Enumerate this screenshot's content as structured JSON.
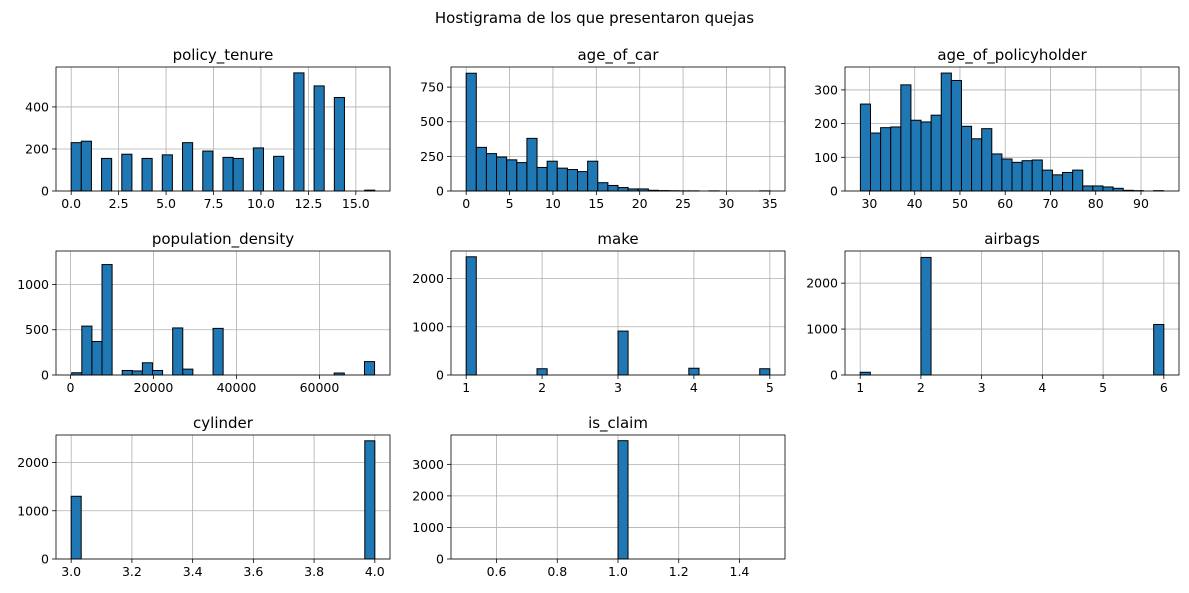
{
  "figure": {
    "suptitle": "Hostigrama de los que presentaron quejas",
    "bar_color": "#1f77b4",
    "edge_color": "#000000",
    "grid_color": "#b0b0b0"
  },
  "chart_data": [
    {
      "type": "bar",
      "title": "policy_tenure",
      "xlim": [
        -0.8,
        16.8
      ],
      "ylim": [
        0,
        590
      ],
      "xticks": [
        0,
        2.5,
        5,
        7.5,
        10,
        12.5,
        15
      ],
      "xtick_labels": [
        "0.0",
        "2.5",
        "5.0",
        "7.5",
        "10.0",
        "12.5",
        "15.0"
      ],
      "yticks": [
        0,
        200,
        400
      ],
      "ytick_labels": [
        "0",
        "200",
        "400"
      ],
      "bin_edges": [
        0,
        0.533,
        1.067,
        1.6,
        2.133,
        2.667,
        3.2,
        3.733,
        4.267,
        4.8,
        5.333,
        5.867,
        6.4,
        6.933,
        7.467,
        8,
        8.533,
        9.067,
        9.6,
        10.133,
        10.667,
        11.2,
        11.733,
        12.267,
        12.8,
        13.333,
        13.867,
        14.4,
        14.933,
        15.467,
        16
      ],
      "counts": [
        230,
        237,
        0,
        155,
        0,
        175,
        0,
        155,
        0,
        172,
        0,
        230,
        0,
        190,
        0,
        160,
        155,
        0,
        205,
        0,
        165,
        0,
        562,
        0,
        500,
        0,
        445,
        0,
        0,
        4
      ]
    },
    {
      "type": "bar",
      "title": "age_of_car",
      "xlim": [
        -1.75,
        36.75
      ],
      "ylim": [
        0,
        895
      ],
      "xticks": [
        0,
        5,
        10,
        15,
        20,
        25,
        30,
        35
      ],
      "xtick_labels": [
        "0",
        "5",
        "10",
        "15",
        "20",
        "25",
        "30",
        "35"
      ],
      "yticks": [
        0,
        250,
        500,
        750
      ],
      "ytick_labels": [
        "0",
        "250",
        "500",
        "750"
      ],
      "bin_edges": [
        0,
        1.167,
        2.333,
        3.5,
        4.667,
        5.833,
        7,
        8.167,
        9.333,
        10.5,
        11.667,
        12.833,
        14,
        15.167,
        16.333,
        17.5,
        18.667,
        19.833,
        21,
        22.167,
        23.333,
        24.5,
        25.667,
        26.833,
        28,
        29.167,
        30.333,
        31.5,
        32.667,
        33.833,
        35
      ],
      "counts": [
        850,
        315,
        270,
        245,
        225,
        205,
        380,
        170,
        215,
        165,
        155,
        140,
        215,
        60,
        40,
        25,
        15,
        15,
        5,
        3,
        2,
        1,
        1,
        0,
        1,
        0,
        0,
        0,
        0,
        1
      ]
    },
    {
      "type": "bar",
      "title": "age_of_policyholder",
      "xlim": [
        24.6,
        98.4
      ],
      "ylim": [
        0,
        368
      ],
      "xticks": [
        30,
        40,
        50,
        60,
        70,
        80,
        90
      ],
      "xtick_labels": [
        "30",
        "40",
        "50",
        "60",
        "70",
        "80",
        "90"
      ],
      "yticks": [
        0,
        100,
        200,
        300
      ],
      "ytick_labels": [
        "0",
        "100",
        "200",
        "300"
      ],
      "bin_edges": [
        28,
        30.233,
        32.467,
        34.7,
        36.933,
        39.167,
        41.4,
        43.633,
        45.867,
        48.1,
        50.333,
        52.567,
        54.8,
        57.033,
        59.267,
        61.5,
        63.733,
        65.967,
        68.2,
        70.433,
        72.667,
        74.9,
        77.133,
        79.367,
        81.6,
        83.833,
        86.067,
        88.3,
        90.533,
        92.767,
        95
      ],
      "counts": [
        258,
        172,
        188,
        190,
        315,
        210,
        205,
        225,
        350,
        328,
        192,
        155,
        185,
        110,
        95,
        85,
        90,
        92,
        62,
        48,
        55,
        62,
        15,
        15,
        12,
        8,
        2,
        1,
        0,
        1
      ]
    },
    {
      "type": "bar",
      "title": "population_density",
      "xlim": [
        -3500,
        77000
      ],
      "ylim": [
        0,
        1370
      ],
      "xticks": [
        0,
        20000,
        40000,
        60000
      ],
      "xtick_labels": [
        "0",
        "20000",
        "40000",
        "60000"
      ],
      "yticks": [
        0,
        500,
        1000
      ],
      "ytick_labels": [
        "0",
        "500",
        "1000"
      ],
      "bin_edges": [
        290,
        2723,
        5156,
        7589,
        10022,
        12455,
        14888,
        17321,
        19754,
        22187,
        24620,
        27053,
        29486,
        31919,
        34352,
        36785,
        39218,
        41651,
        44084,
        46517,
        48950,
        51383,
        53816,
        56249,
        58682,
        61115,
        63548,
        65981,
        68414,
        70847,
        73280
      ],
      "counts": [
        25,
        540,
        370,
        1220,
        0,
        50,
        45,
        135,
        50,
        0,
        520,
        65,
        0,
        0,
        515,
        0,
        0,
        0,
        0,
        0,
        0,
        0,
        0,
        0,
        0,
        0,
        22,
        0,
        0,
        148
      ]
    },
    {
      "type": "bar",
      "title": "make",
      "xlim": [
        0.8,
        5.2
      ],
      "ylim": [
        0,
        2570
      ],
      "xticks": [
        1,
        2,
        3,
        4,
        5
      ],
      "xtick_labels": [
        "1",
        "2",
        "3",
        "4",
        "5"
      ],
      "yticks": [
        0,
        1000,
        2000
      ],
      "ytick_labels": [
        "0",
        "1000",
        "2000"
      ],
      "bin_edges": [
        1,
        1.133,
        1.267,
        1.4,
        1.533,
        1.667,
        1.8,
        1.933,
        2.067,
        2.2,
        2.333,
        2.467,
        2.6,
        2.733,
        2.867,
        3,
        3.133,
        3.267,
        3.4,
        3.533,
        3.667,
        3.8,
        3.933,
        4.067,
        4.2,
        4.333,
        4.467,
        4.6,
        4.733,
        4.867,
        5
      ],
      "counts": [
        2450,
        0,
        0,
        0,
        0,
        0,
        0,
        130,
        0,
        0,
        0,
        0,
        0,
        0,
        0,
        910,
        0,
        0,
        0,
        0,
        0,
        0,
        140,
        0,
        0,
        0,
        0,
        0,
        0,
        130
      ]
    },
    {
      "type": "bar",
      "title": "airbags",
      "xlim": [
        0.75,
        6.25
      ],
      "ylim": [
        0,
        2700
      ],
      "xticks": [
        1,
        2,
        3,
        4,
        5,
        6
      ],
      "xtick_labels": [
        "1",
        "2",
        "3",
        "4",
        "5",
        "6"
      ],
      "yticks": [
        0,
        1000,
        2000
      ],
      "ytick_labels": [
        "0",
        "1000",
        "2000"
      ],
      "bin_edges": [
        1,
        1.167,
        1.333,
        1.5,
        1.667,
        1.833,
        2,
        2.167,
        2.333,
        2.5,
        2.667,
        2.833,
        3,
        3.167,
        3.333,
        3.5,
        3.667,
        3.833,
        4,
        4.167,
        4.333,
        4.5,
        4.667,
        4.833,
        5,
        5.167,
        5.333,
        5.5,
        5.667,
        5.833,
        6
      ],
      "counts": [
        60,
        0,
        0,
        0,
        0,
        0,
        2560,
        0,
        0,
        0,
        0,
        0,
        0,
        0,
        0,
        0,
        0,
        0,
        0,
        0,
        0,
        0,
        0,
        0,
        0,
        0,
        0,
        0,
        0,
        1100
      ]
    },
    {
      "type": "bar",
      "title": "cylinder",
      "xlim": [
        2.95,
        4.05
      ],
      "ylim": [
        0,
        2570
      ],
      "xticks": [
        3,
        3.2,
        3.4,
        3.6,
        3.8,
        4
      ],
      "xtick_labels": [
        "3.0",
        "3.2",
        "3.4",
        "3.6",
        "3.8",
        "4.0"
      ],
      "yticks": [
        0,
        1000,
        2000
      ],
      "ytick_labels": [
        "0",
        "1000",
        "2000"
      ],
      "bin_edges": [
        3,
        3.033,
        3.067,
        3.1,
        3.133,
        3.167,
        3.2,
        3.233,
        3.267,
        3.3,
        3.333,
        3.367,
        3.4,
        3.433,
        3.467,
        3.5,
        3.533,
        3.567,
        3.6,
        3.633,
        3.667,
        3.7,
        3.733,
        3.767,
        3.8,
        3.833,
        3.867,
        3.9,
        3.933,
        3.967,
        4
      ],
      "counts": [
        1300,
        0,
        0,
        0,
        0,
        0,
        0,
        0,
        0,
        0,
        0,
        0,
        0,
        0,
        0,
        0,
        0,
        0,
        0,
        0,
        0,
        0,
        0,
        0,
        0,
        0,
        0,
        0,
        0,
        2450
      ]
    },
    {
      "type": "bar",
      "title": "is_claim",
      "xlim": [
        0.45,
        1.55
      ],
      "ylim": [
        0,
        3930
      ],
      "xticks": [
        0.6,
        0.8,
        1,
        1.2,
        1.4
      ],
      "xtick_labels": [
        "0.6",
        "0.8",
        "1.0",
        "1.2",
        "1.4"
      ],
      "yticks": [
        0,
        1000,
        2000,
        3000
      ],
      "ytick_labels": [
        "0",
        "1000",
        "2000",
        "3000"
      ],
      "bin_edges": [
        0.5,
        0.533,
        0.567,
        0.6,
        0.633,
        0.667,
        0.7,
        0.733,
        0.767,
        0.8,
        0.833,
        0.867,
        0.9,
        0.933,
        0.967,
        1,
        1.033,
        1.067,
        1.1,
        1.133,
        1.167,
        1.2,
        1.233,
        1.267,
        1.3,
        1.333,
        1.367,
        1.4,
        1.433,
        1.467,
        1.5
      ],
      "counts": [
        0,
        0,
        0,
        0,
        0,
        0,
        0,
        0,
        0,
        0,
        0,
        0,
        0,
        0,
        0,
        3750,
        0,
        0,
        0,
        0,
        0,
        0,
        0,
        0,
        0,
        0,
        0,
        0,
        0,
        0
      ]
    }
  ]
}
